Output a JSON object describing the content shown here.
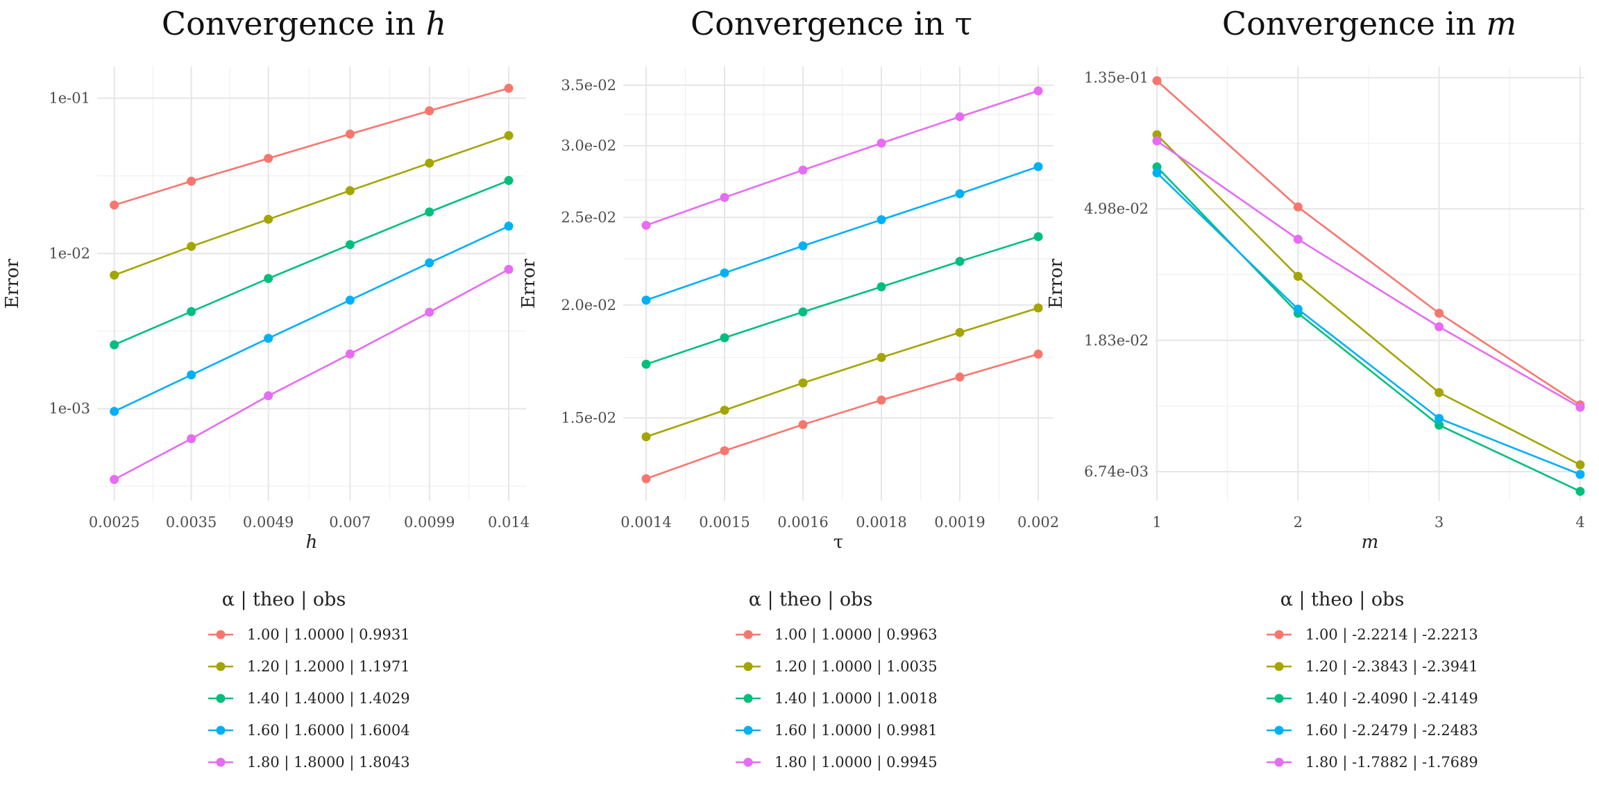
{
  "colors": [
    "#F8766D",
    "#A3A500",
    "#00BF7D",
    "#00B0F6",
    "#E76BF3"
  ],
  "chart_data": [
    {
      "type": "line",
      "title_prefix": "Convergence in ",
      "title_var": "h",
      "title_var_style": "italic",
      "xlabel": "h",
      "xlabel_style": "italic",
      "ylabel": "Error",
      "x_scale": "log",
      "y_scale": "log",
      "x": [
        0.0025,
        0.0035,
        0.0049,
        0.007,
        0.0099,
        0.014
      ],
      "x_tick_labels": [
        "0.0025",
        "0.0035",
        "0.0049",
        "0.007",
        "0.0099",
        "0.014"
      ],
      "xlim": [
        0.00232,
        0.0151
      ],
      "ylim": [
        0.000255,
        0.16
      ],
      "y_ticks": [
        0.1,
        0.01,
        0.001
      ],
      "y_tick_labels": [
        "1e-01",
        "1e-02",
        "1e-03"
      ],
      "y_minor_ticks": [
        0.0003162,
        0.003162,
        0.03162
      ],
      "legend_title": "α  | theo  | obs",
      "legend_position": "bottom",
      "series": [
        {
          "name": "1.00 | 1.0000 | 0.9931",
          "values": [
            0.0205,
            0.0292,
            0.041,
            0.0588,
            0.083,
            0.116
          ]
        },
        {
          "name": "1.20 | 1.2000 | 1.1971",
          "values": [
            0.00725,
            0.0111,
            0.0166,
            0.0254,
            0.0382,
            0.0575
          ]
        },
        {
          "name": "1.40 | 1.4000 | 1.4029",
          "values": [
            0.00258,
            0.00422,
            0.0069,
            0.0114,
            0.0185,
            0.0295
          ]
        },
        {
          "name": "1.60 | 1.6000 | 1.6004",
          "values": [
            0.00096,
            0.00165,
            0.00284,
            0.005,
            0.0087,
            0.015
          ]
        },
        {
          "name": "1.80 | 1.8000 | 1.8043",
          "values": [
            0.00035,
            0.00064,
            0.00121,
            0.00225,
            0.00418,
            0.0079
          ]
        }
      ]
    },
    {
      "type": "line",
      "title_prefix": "Convergence in ",
      "title_var": "τ",
      "title_var_style": "normal",
      "xlabel": "τ",
      "xlabel_style": "normal",
      "ylabel": "Error",
      "x_scale": "log",
      "y_scale": "log",
      "x": [
        0.0014,
        0.0015,
        0.0016,
        0.0018,
        0.0019,
        0.002
      ],
      "x_positions": [
        0,
        1,
        2,
        3,
        4,
        5
      ],
      "x_tick_labels": [
        "0.0014",
        "0.0015",
        "0.0016",
        "0.0018",
        "0.0019",
        "0.002"
      ],
      "ylim": [
        0.01215,
        0.0367
      ],
      "y_ticks": [
        0.035,
        0.03,
        0.025,
        0.02,
        0.015
      ],
      "y_tick_labels": [
        "3.5e-02",
        "3.0e-02",
        "2.5e-02",
        "2.0e-02",
        "1.5e-02"
      ],
      "y_minor_ticks": [
        0.0325,
        0.0275,
        0.0225,
        0.0175
      ],
      "legend_title": "α  | theo  | obs",
      "legend_position": "bottom",
      "series": [
        {
          "name": "1.00 | 1.0000 | 0.9963",
          "values": [
            0.01285,
            0.0138,
            0.01475,
            0.0157,
            0.01665,
            0.01765
          ]
        },
        {
          "name": "1.20 | 1.0000 | 1.0035",
          "values": [
            0.0143,
            0.0153,
            0.0164,
            0.0175,
            0.01865,
            0.01985
          ]
        },
        {
          "name": "1.40 | 1.0000 | 1.0018",
          "values": [
            0.0172,
            0.0184,
            0.01965,
            0.02095,
            0.02235,
            0.0238
          ]
        },
        {
          "name": "1.60 | 1.0000 | 0.9981",
          "values": [
            0.02025,
            0.0217,
            0.02325,
            0.02485,
            0.02655,
            0.02845
          ]
        },
        {
          "name": "1.80 | 1.0000 | 0.9945",
          "values": [
            0.0245,
            0.0263,
            0.0282,
            0.0302,
            0.0323,
            0.0345
          ]
        }
      ]
    },
    {
      "type": "line",
      "title_prefix": "Convergence in ",
      "title_var": "m",
      "title_var_style": "italic",
      "xlabel": "m",
      "xlabel_style": "italic",
      "ylabel": "Error",
      "x_scale": "linear",
      "y_scale": "log",
      "x": [
        1,
        2,
        3,
        4
      ],
      "x_tick_labels": [
        "1",
        "2",
        "3",
        "4"
      ],
      "xlim": [
        0.99,
        4.03
      ],
      "ylim": [
        0.0054,
        0.147
      ],
      "y_ticks": [
        0.135,
        0.0498,
        0.0183,
        0.00674
      ],
      "y_tick_labels": [
        "1.35e-01",
        "4.98e-02",
        "1.83e-02",
        "6.74e-03"
      ],
      "y_minor_ticks": [
        0.082,
        0.0302,
        0.0111
      ],
      "legend_title": "α  | theo  | obs",
      "legend_position": "bottom",
      "series": [
        {
          "name": "1.00 | -2.2214 | -2.2213",
          "values": [
            0.132,
            0.0505,
            0.0225,
            0.0112
          ]
        },
        {
          "name": "1.20 | -2.3843 | -2.3941",
          "values": [
            0.0875,
            0.0298,
            0.0123,
            0.0071
          ]
        },
        {
          "name": "1.40 | -2.4090 | -2.4149",
          "values": [
            0.0685,
            0.0225,
            0.0096,
            0.0058
          ]
        },
        {
          "name": "1.60 | -2.2479 | -2.2483",
          "values": [
            0.0655,
            0.0232,
            0.0101,
            0.0066
          ]
        },
        {
          "name": "1.80 | -1.7882 | -1.7689",
          "values": [
            0.0835,
            0.0395,
            0.0203,
            0.011
          ]
        }
      ]
    }
  ]
}
